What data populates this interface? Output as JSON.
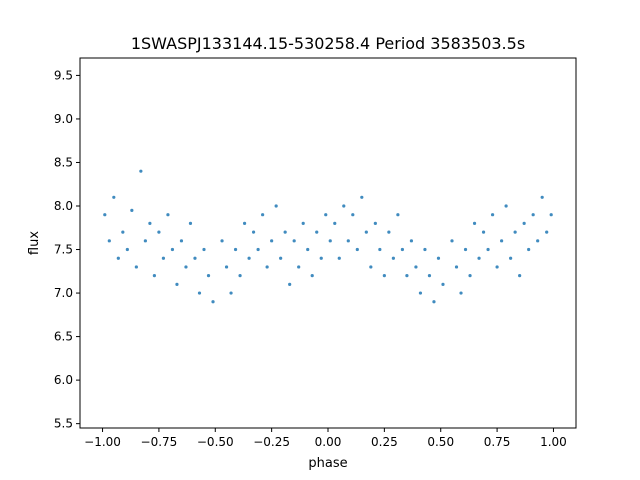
{
  "chart_data": {
    "type": "scatter",
    "title": "1SWASPJ133144.15-530258.4 Period 3583503.5s",
    "xlabel": "phase",
    "ylabel": "flux",
    "xlim": [
      -1.1,
      1.1
    ],
    "ylim": [
      5.45,
      9.7
    ],
    "grid": false,
    "x_ticks": [
      {
        "value": -1.0,
        "label": "−1.00"
      },
      {
        "value": -0.75,
        "label": "−0.75"
      },
      {
        "value": -0.5,
        "label": "−0.50"
      },
      {
        "value": -0.25,
        "label": "−0.25"
      },
      {
        "value": 0.0,
        "label": "0.00"
      },
      {
        "value": 0.25,
        "label": "0.25"
      },
      {
        "value": 0.5,
        "label": "0.50"
      },
      {
        "value": 0.75,
        "label": "0.75"
      },
      {
        "value": 1.0,
        "label": "1.00"
      }
    ],
    "y_ticks": [
      {
        "value": 5.5,
        "label": "5.5"
      },
      {
        "value": 6.0,
        "label": "6.0"
      },
      {
        "value": 6.5,
        "label": "6.5"
      },
      {
        "value": 7.0,
        "label": "7.0"
      },
      {
        "value": 7.5,
        "label": "7.5"
      },
      {
        "value": 8.0,
        "label": "8.0"
      },
      {
        "value": 8.5,
        "label": "8.5"
      },
      {
        "value": 9.0,
        "label": "9.0"
      },
      {
        "value": 9.5,
        "label": "9.5"
      }
    ],
    "series": [
      {
        "color": "#1f77b4",
        "points": [
          [
            -0.99,
            7.9
          ],
          [
            -0.97,
            7.6
          ],
          [
            -0.95,
            8.1
          ],
          [
            -0.93,
            7.4
          ],
          [
            -0.91,
            7.7
          ],
          [
            -0.89,
            7.5
          ],
          [
            -0.87,
            7.95
          ],
          [
            -0.85,
            7.3
          ],
          [
            -0.83,
            8.4
          ],
          [
            -0.81,
            7.6
          ],
          [
            -0.79,
            7.8
          ],
          [
            -0.77,
            7.2
          ],
          [
            -0.75,
            7.7
          ],
          [
            -0.73,
            7.4
          ],
          [
            -0.71,
            7.9
          ],
          [
            -0.69,
            7.5
          ],
          [
            -0.67,
            7.1
          ],
          [
            -0.65,
            7.6
          ],
          [
            -0.63,
            7.3
          ],
          [
            -0.61,
            7.8
          ],
          [
            -0.59,
            7.4
          ],
          [
            -0.57,
            7.0
          ],
          [
            -0.55,
            7.5
          ],
          [
            -0.53,
            7.2
          ],
          [
            -0.51,
            6.9
          ],
          [
            -0.47,
            7.6
          ],
          [
            -0.45,
            7.3
          ],
          [
            -0.43,
            7.0
          ],
          [
            -0.41,
            7.5
          ],
          [
            -0.39,
            7.2
          ],
          [
            -0.37,
            7.8
          ],
          [
            -0.35,
            7.4
          ],
          [
            -0.33,
            7.7
          ],
          [
            -0.31,
            7.5
          ],
          [
            -0.29,
            7.9
          ],
          [
            -0.27,
            7.3
          ],
          [
            -0.25,
            7.6
          ],
          [
            -0.23,
            8.0
          ],
          [
            -0.21,
            7.4
          ],
          [
            -0.19,
            7.7
          ],
          [
            -0.17,
            7.1
          ],
          [
            -0.15,
            7.6
          ],
          [
            -0.13,
            7.3
          ],
          [
            -0.11,
            7.8
          ],
          [
            -0.09,
            7.5
          ],
          [
            -0.07,
            7.2
          ],
          [
            -0.05,
            7.7
          ],
          [
            -0.03,
            7.4
          ],
          [
            -0.01,
            7.9
          ],
          [
            0.01,
            7.6
          ],
          [
            0.03,
            7.8
          ],
          [
            0.05,
            7.4
          ],
          [
            0.07,
            8.0
          ],
          [
            0.09,
            7.6
          ],
          [
            0.11,
            7.9
          ],
          [
            0.13,
            7.5
          ],
          [
            0.15,
            8.1
          ],
          [
            0.17,
            7.7
          ],
          [
            0.19,
            7.3
          ],
          [
            0.21,
            7.8
          ],
          [
            0.23,
            7.5
          ],
          [
            0.25,
            7.2
          ],
          [
            0.27,
            7.7
          ],
          [
            0.29,
            7.4
          ],
          [
            0.31,
            7.9
          ],
          [
            0.33,
            7.5
          ],
          [
            0.35,
            7.2
          ],
          [
            0.37,
            7.6
          ],
          [
            0.39,
            7.3
          ],
          [
            0.41,
            7.0
          ],
          [
            0.43,
            7.5
          ],
          [
            0.45,
            7.2
          ],
          [
            0.47,
            6.9
          ],
          [
            0.49,
            7.4
          ],
          [
            0.51,
            7.1
          ],
          [
            0.55,
            7.6
          ],
          [
            0.57,
            7.3
          ],
          [
            0.59,
            7.0
          ],
          [
            0.61,
            7.5
          ],
          [
            0.63,
            7.2
          ],
          [
            0.65,
            7.8
          ],
          [
            0.67,
            7.4
          ],
          [
            0.69,
            7.7
          ],
          [
            0.71,
            7.5
          ],
          [
            0.73,
            7.9
          ],
          [
            0.75,
            7.3
          ],
          [
            0.77,
            7.6
          ],
          [
            0.79,
            8.0
          ],
          [
            0.81,
            7.4
          ],
          [
            0.83,
            7.7
          ],
          [
            0.85,
            7.2
          ],
          [
            0.87,
            7.8
          ],
          [
            0.89,
            7.5
          ],
          [
            0.91,
            7.9
          ],
          [
            0.93,
            7.6
          ],
          [
            0.95,
            8.1
          ],
          [
            0.97,
            7.7
          ],
          [
            0.99,
            7.9
          ]
        ]
      }
    ]
  }
}
